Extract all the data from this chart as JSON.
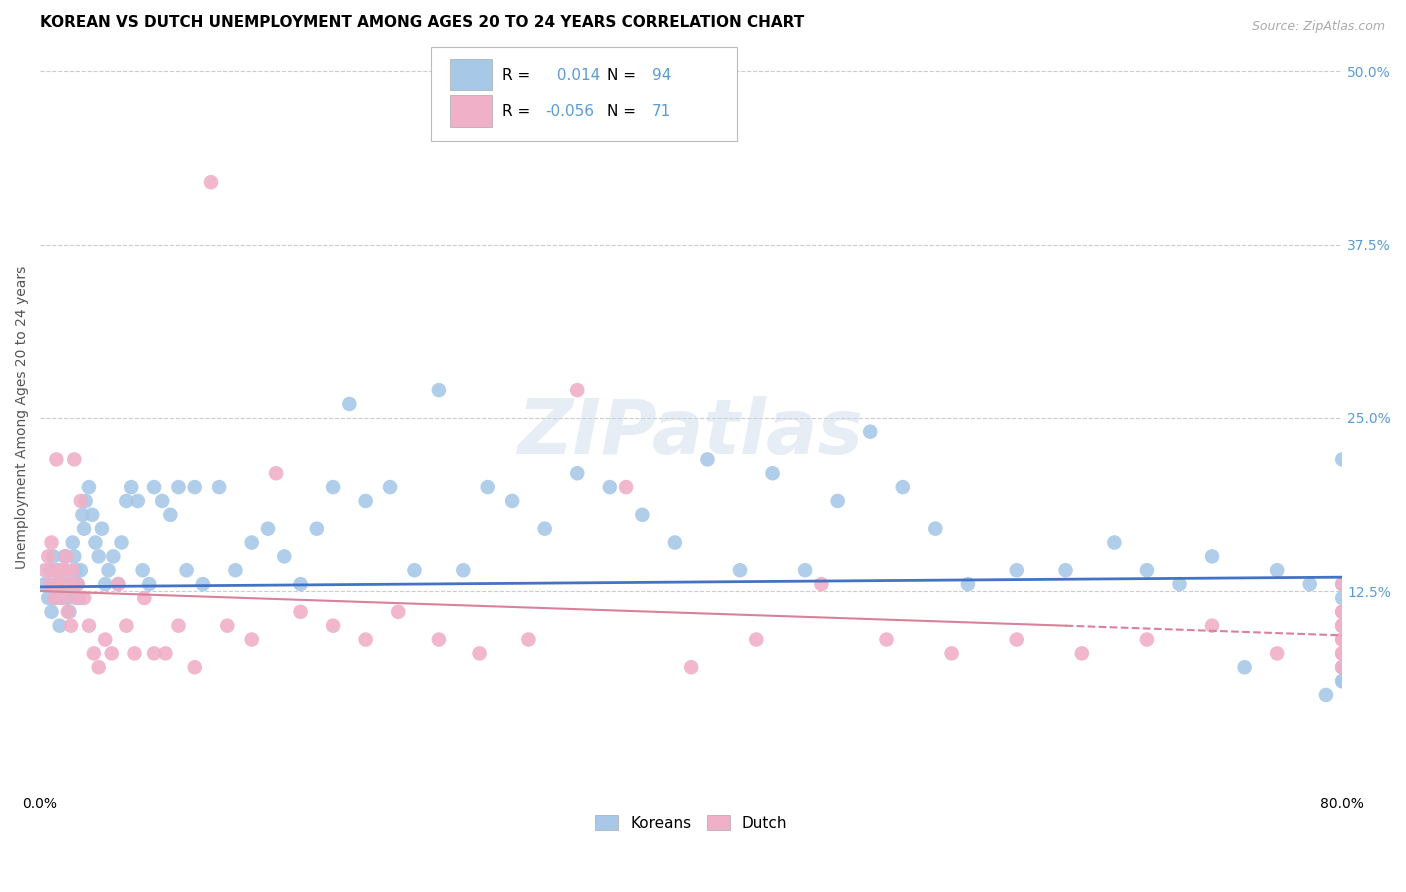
{
  "title": "KOREAN VS DUTCH UNEMPLOYMENT AMONG AGES 20 TO 24 YEARS CORRELATION CHART",
  "source": "Source: ZipAtlas.com",
  "ylabel": "Unemployment Among Ages 20 to 24 years",
  "xlim": [
    0.0,
    0.8
  ],
  "ylim": [
    -0.02,
    0.52
  ],
  "xticks": [
    0.0,
    0.2,
    0.4,
    0.6,
    0.8
  ],
  "xticklabels": [
    "0.0%",
    "",
    "",
    "",
    "80.0%"
  ],
  "yticks_right": [
    0.125,
    0.25,
    0.375,
    0.5
  ],
  "yticklabels_right": [
    "12.5%",
    "25.0%",
    "37.5%",
    "50.0%"
  ],
  "grid_color": "#cccccc",
  "background_color": "#ffffff",
  "korean_color": "#a8c8e8",
  "dutch_color": "#f0b0c8",
  "korean_R": 0.014,
  "korean_N": 94,
  "dutch_R": -0.056,
  "dutch_N": 71,
  "korean_line_color": "#4472c4",
  "dutch_line_color": "#d9819a",
  "watermark": "ZIPatlas",
  "korean_points_x": [
    0.003,
    0.005,
    0.006,
    0.007,
    0.008,
    0.009,
    0.01,
    0.011,
    0.012,
    0.013,
    0.014,
    0.015,
    0.016,
    0.017,
    0.018,
    0.019,
    0.02,
    0.021,
    0.022,
    0.023,
    0.024,
    0.025,
    0.026,
    0.027,
    0.028,
    0.03,
    0.032,
    0.034,
    0.036,
    0.038,
    0.04,
    0.042,
    0.045,
    0.048,
    0.05,
    0.053,
    0.056,
    0.06,
    0.063,
    0.067,
    0.07,
    0.075,
    0.08,
    0.085,
    0.09,
    0.095,
    0.1,
    0.11,
    0.12,
    0.13,
    0.14,
    0.15,
    0.16,
    0.17,
    0.18,
    0.19,
    0.2,
    0.215,
    0.23,
    0.245,
    0.26,
    0.275,
    0.29,
    0.31,
    0.33,
    0.35,
    0.37,
    0.39,
    0.41,
    0.43,
    0.45,
    0.47,
    0.49,
    0.51,
    0.53,
    0.55,
    0.57,
    0.6,
    0.63,
    0.66,
    0.68,
    0.7,
    0.72,
    0.74,
    0.76,
    0.78,
    0.79,
    0.8,
    0.8,
    0.8,
    0.8,
    0.8,
    0.8,
    0.8
  ],
  "korean_points_y": [
    0.13,
    0.12,
    0.14,
    0.11,
    0.15,
    0.12,
    0.13,
    0.14,
    0.1,
    0.12,
    0.13,
    0.15,
    0.14,
    0.12,
    0.11,
    0.13,
    0.16,
    0.15,
    0.14,
    0.13,
    0.12,
    0.14,
    0.18,
    0.17,
    0.19,
    0.2,
    0.18,
    0.16,
    0.15,
    0.17,
    0.13,
    0.14,
    0.15,
    0.13,
    0.16,
    0.19,
    0.2,
    0.19,
    0.14,
    0.13,
    0.2,
    0.19,
    0.18,
    0.2,
    0.14,
    0.2,
    0.13,
    0.2,
    0.14,
    0.16,
    0.17,
    0.15,
    0.13,
    0.17,
    0.2,
    0.26,
    0.19,
    0.2,
    0.14,
    0.27,
    0.14,
    0.2,
    0.19,
    0.17,
    0.21,
    0.2,
    0.18,
    0.16,
    0.22,
    0.14,
    0.21,
    0.14,
    0.19,
    0.24,
    0.2,
    0.17,
    0.13,
    0.14,
    0.14,
    0.16,
    0.14,
    0.13,
    0.15,
    0.07,
    0.14,
    0.13,
    0.05,
    0.22,
    0.12,
    0.06,
    0.07,
    0.13,
    0.06,
    0.07
  ],
  "dutch_points_x": [
    0.003,
    0.005,
    0.006,
    0.007,
    0.008,
    0.009,
    0.01,
    0.011,
    0.012,
    0.013,
    0.014,
    0.015,
    0.016,
    0.017,
    0.018,
    0.019,
    0.02,
    0.021,
    0.022,
    0.023,
    0.025,
    0.027,
    0.03,
    0.033,
    0.036,
    0.04,
    0.044,
    0.048,
    0.053,
    0.058,
    0.064,
    0.07,
    0.077,
    0.085,
    0.095,
    0.105,
    0.115,
    0.13,
    0.145,
    0.16,
    0.18,
    0.2,
    0.22,
    0.245,
    0.27,
    0.3,
    0.33,
    0.36,
    0.4,
    0.44,
    0.48,
    0.52,
    0.56,
    0.6,
    0.64,
    0.68,
    0.72,
    0.76,
    0.8,
    0.8,
    0.8,
    0.8,
    0.8,
    0.8,
    0.8,
    0.8,
    0.8,
    0.8,
    0.8,
    0.8,
    0.8
  ],
  "dutch_points_y": [
    0.14,
    0.15,
    0.13,
    0.16,
    0.14,
    0.12,
    0.22,
    0.13,
    0.14,
    0.13,
    0.12,
    0.14,
    0.15,
    0.11,
    0.13,
    0.1,
    0.14,
    0.22,
    0.12,
    0.13,
    0.19,
    0.12,
    0.1,
    0.08,
    0.07,
    0.09,
    0.08,
    0.13,
    0.1,
    0.08,
    0.12,
    0.08,
    0.08,
    0.1,
    0.07,
    0.42,
    0.1,
    0.09,
    0.21,
    0.11,
    0.1,
    0.09,
    0.11,
    0.09,
    0.08,
    0.09,
    0.27,
    0.2,
    0.07,
    0.09,
    0.13,
    0.09,
    0.08,
    0.09,
    0.08,
    0.09,
    0.1,
    0.08,
    0.11,
    0.09,
    0.08,
    0.1,
    0.08,
    0.11,
    0.13,
    0.08,
    0.1,
    0.07,
    0.1,
    0.1,
    0.09
  ],
  "korean_line_x": [
    0.0,
    0.8
  ],
  "korean_line_y": [
    0.128,
    0.135
  ],
  "dutch_line_x": [
    0.0,
    0.63
  ],
  "dutch_line_y": [
    0.125,
    0.1
  ],
  "title_fontsize": 11,
  "label_fontsize": 10,
  "tick_fontsize": 10,
  "legend_fontsize": 11,
  "source_fontsize": 9
}
